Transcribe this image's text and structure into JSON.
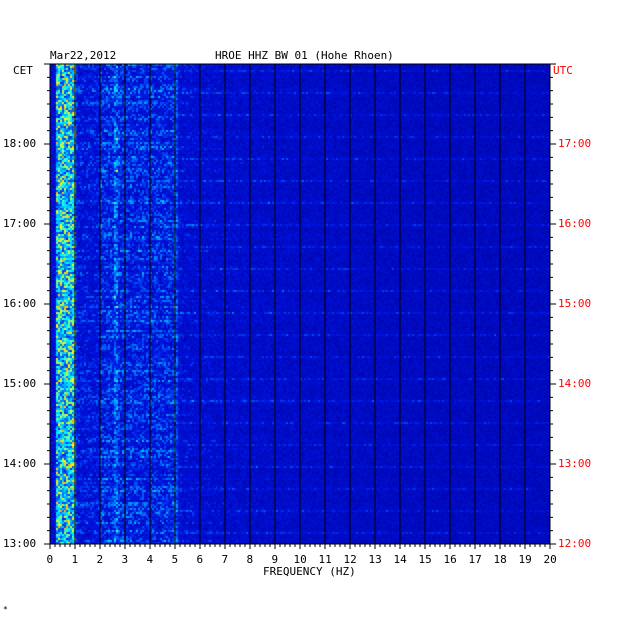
{
  "chart_data": {
    "type": "heatmap",
    "title": "HROE HHZ BW 01 (Hohe Rhoen)",
    "date": "Mar22,2012",
    "xlabel": "FREQUENCY (HZ)",
    "x_ticks": [
      "0",
      "1",
      "2",
      "3",
      "4",
      "5",
      "6",
      "7",
      "8",
      "9",
      "10",
      "11",
      "12",
      "13",
      "14",
      "15",
      "16",
      "17",
      "18",
      "19",
      "20"
    ],
    "xlim": [
      0,
      20
    ],
    "left_axis": {
      "label": "CET",
      "ticks": [
        "13:00",
        "14:00",
        "15:00",
        "16:00",
        "17:00",
        "18:00"
      ],
      "range": [
        "13:00",
        "19:00"
      ]
    },
    "right_axis": {
      "label": "UTC",
      "ticks": [
        "12:00",
        "13:00",
        "14:00",
        "15:00",
        "16:00",
        "17:00"
      ],
      "range": [
        "12:00",
        "18:00"
      ]
    },
    "colors": {
      "background": "#0000cc",
      "low": "#0000b4",
      "mid": "#00a0ff",
      "high": "#ffff00",
      "peak": "#ff0000",
      "right_axis_text": "#ff0000"
    },
    "energy_summary": {
      "dominant_band_hz": [
        0.2,
        1.0
      ],
      "secondary_band_hz": [
        2.0,
        5.0
      ],
      "persistent_lines_hz": [
        2.6,
        5.0
      ]
    },
    "footnote": "*"
  }
}
